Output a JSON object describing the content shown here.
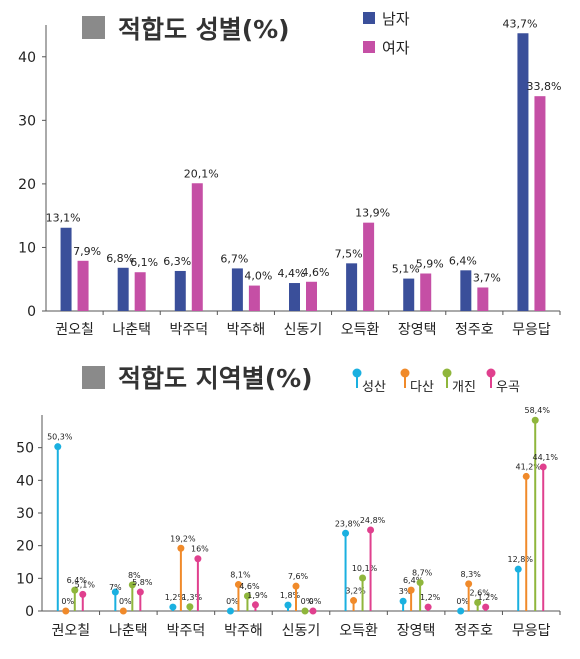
{
  "chart_data": [
    {
      "type": "bar",
      "title": "적합도 성별(%)",
      "categories": [
        "권오칠",
        "나춘택",
        "박주덕",
        "박주해",
        "신동기",
        "오득환",
        "장영택",
        "정주호",
        "무응답"
      ],
      "series": [
        {
          "name": "남자",
          "color": "#3a4f9a",
          "values": [
            13.1,
            6.8,
            6.3,
            6.7,
            4.4,
            7.5,
            5.1,
            6.4,
            43.7
          ],
          "labels": [
            "13,1%",
            "6,8%",
            "6,3%",
            "6,7%",
            "4,4%",
            "7,5%",
            "5,1%",
            "6,4%",
            "43,7%"
          ]
        },
        {
          "name": "여자",
          "color": "#c54fa5",
          "values": [
            7.9,
            6.1,
            20.1,
            4.0,
            4.6,
            13.9,
            5.9,
            3.7,
            33.8
          ],
          "labels": [
            "7,9%",
            "6,1%",
            "20,1%",
            "4,0%",
            "4,6%",
            "13,9%",
            "5,9%",
            "3,7%",
            "33,8%"
          ]
        }
      ],
      "ylim": [
        0,
        45
      ],
      "yticks": [
        0,
        10,
        20,
        30,
        40
      ],
      "legend": "top-right",
      "grid": false
    },
    {
      "type": "lollipop",
      "title": "적합도 지역별(%)",
      "categories": [
        "권오칠",
        "나춘택",
        "박주덕",
        "박주해",
        "신동기",
        "오득환",
        "장영택",
        "정주호",
        "무응답"
      ],
      "series": [
        {
          "name": "성산",
          "color": "#1ab0e0",
          "values": [
            50.3,
            5.8,
            1.2,
            0,
            1.8,
            23.8,
            3,
            0,
            12.8
          ],
          "labels": [
            "50,3%",
            "",
            "1,2%",
            "0%",
            "1,8%",
            "23,8%",
            "3%",
            "0%",
            "12,8%"
          ]
        },
        {
          "name": "다산",
          "color": "#f08a2a",
          "values": [
            0,
            0,
            19.2,
            8.1,
            7.6,
            3.2,
            6.4,
            8.3,
            41.2
          ],
          "labels": [
            "0%",
            "0%",
            "19,2%",
            "8,1%",
            "7,6%",
            "3,2%",
            "6,4%",
            "8,3%",
            "41,2%"
          ]
        },
        {
          "name": "개진",
          "color": "#8fb63c",
          "values": [
            6.4,
            8,
            1.3,
            4.6,
            0,
            10.1,
            8.7,
            2.6,
            58.4
          ],
          "labels": [
            "6,4%",
            "8%",
            "1,3%",
            "4,6%",
            "0%",
            "10,1%",
            "8,7%",
            "2,6%",
            "58,4%"
          ]
        },
        {
          "name": "우곡",
          "color": "#e0408e",
          "values": [
            5.1,
            5.8,
            16,
            1.9,
            0,
            24.8,
            1.2,
            1.2,
            44.1
          ],
          "labels": [
            "5,1%",
            "5,8%",
            "16%",
            "1,9%",
            "0%",
            "24,8%",
            "1,2%",
            "1,2%",
            "44,1%"
          ]
        }
      ],
      "extra_labels": [
        {
          "category": 1,
          "text": "7%"
        }
      ],
      "ylim": [
        0,
        60
      ],
      "yticks": [
        0,
        10,
        20,
        30,
        40,
        50
      ],
      "legend": "top-right",
      "grid": false
    }
  ]
}
